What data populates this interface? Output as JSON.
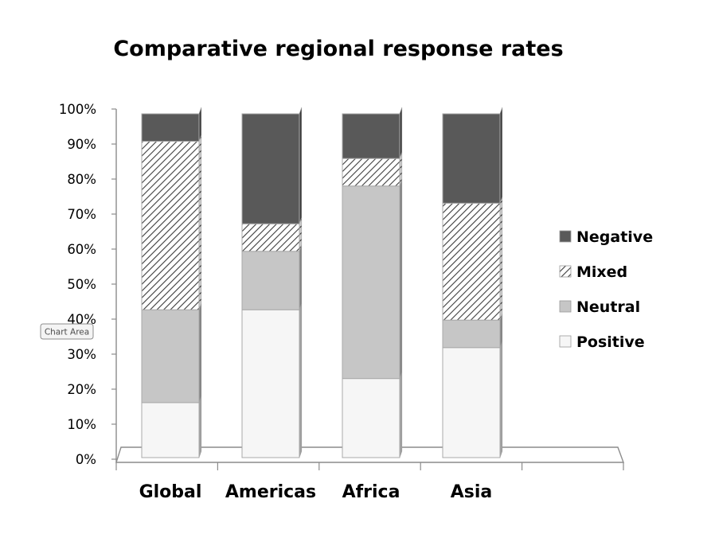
{
  "chart_data": {
    "type": "bar",
    "stacked": true,
    "percent_stacked": true,
    "three_d": true,
    "title": "Comparative regional response rates",
    "categories": [
      "Global",
      "Americas",
      "Africa",
      "Asia"
    ],
    "series": [
      {
        "name": "Positive",
        "values": [
          16,
          43,
          23,
          32
        ],
        "color": "#f6f6f6",
        "pattern": "solid"
      },
      {
        "name": "Neutral",
        "values": [
          27,
          17,
          56,
          8
        ],
        "color": "#c6c6c6",
        "pattern": "solid"
      },
      {
        "name": "Mixed",
        "values": [
          49,
          8,
          8,
          34
        ],
        "color": "#ffffff",
        "pattern": "diagonal-hatch"
      },
      {
        "name": "Negative",
        "values": [
          8,
          32,
          13,
          26
        ],
        "color": "#595959",
        "pattern": "solid"
      }
    ],
    "ylim": [
      0,
      100
    ],
    "y_ticks": [
      "0%",
      "10%",
      "20%",
      "30%",
      "40%",
      "50%",
      "60%",
      "70%",
      "80%",
      "90%",
      "100%"
    ],
    "grid": false,
    "legend": {
      "position": "right",
      "order": [
        "Negative",
        "Mixed",
        "Neutral",
        "Positive"
      ]
    },
    "colors": {
      "negative": "#595959",
      "neutral": "#c6c6c6",
      "positive": "#f6f6f6",
      "mixed_hatch": "#3c3c3c",
      "axis": "#8c8c8c"
    }
  },
  "tooltip": {
    "label": "Chart Area"
  }
}
